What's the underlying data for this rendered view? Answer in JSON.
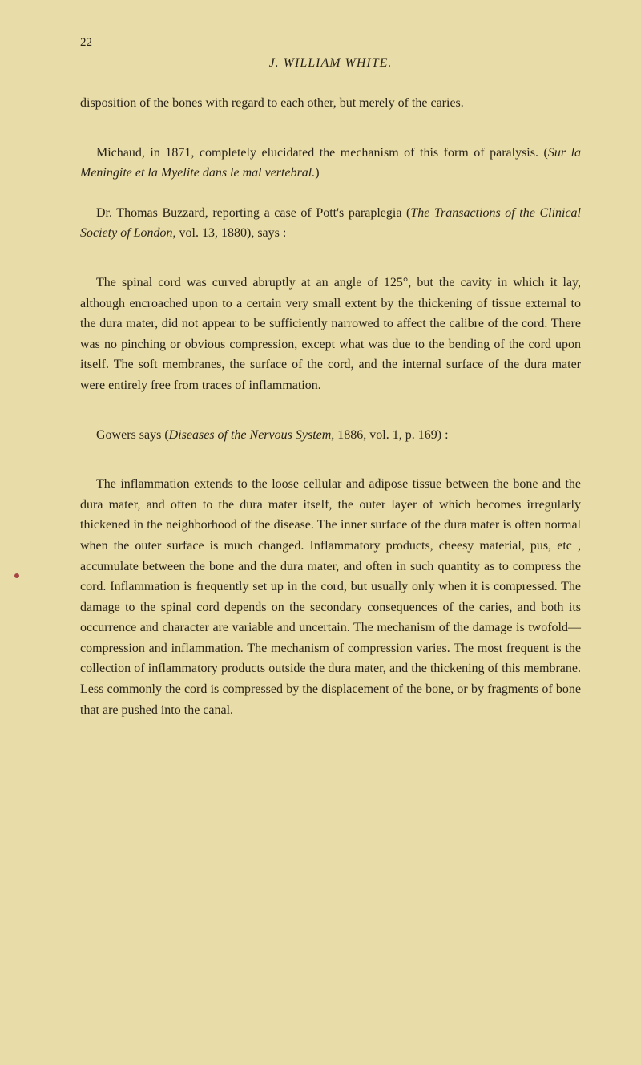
{
  "pageNumber": "22",
  "headerTitle": "J. WILLIAM WHITE.",
  "para1": "disposition of the bones with regard to each other, but merely of the caries.",
  "para2_part1": "Michaud, in 1871, completely elucidated the mechanism of this form of paralysis. (",
  "para2_italic": "Sur la Meningite et la Myelite dans le mal vertebral.",
  "para2_part2": ")",
  "para3_part1": "Dr. Thomas Buzzard, reporting a case of Pott's paraplegia (",
  "para3_italic": "The Transactions of the Clinical Society of London,",
  "para3_part2": " vol. 13, 1880), says :",
  "para4": "The spinal cord was curved abruptly at an angle of 125°, but the cavity in which it lay, although encroached upon to a certain very small extent by the thickening of tissue external to the dura mater, did not appear to be sufficiently narrowed to affect the calibre of the cord. There was no pinching or obvious compression, except what was due to the bending of the cord upon itself. The soft membranes, the surface of the cord, and the internal surface of the dura mater were entirely free from traces of inflammation.",
  "para5_part1": "Gowers says (",
  "para5_italic": "Diseases of the Nervous System,",
  "para5_part2": " 1886, vol. 1, p. 169) :",
  "para6": "The inflammation extends to the loose cellular and adipose tissue between the bone and the dura mater, and often to the dura mater itself, the outer layer of which becomes irregularly thickened in the neighborhood of the disease. The inner surface of the dura mater is often normal when the outer surface is much changed. Inflammatory products, cheesy material, pus, etc , accumulate between the bone and the dura mater, and often in such quantity as to compress the cord. Inflammation is frequently set up in the cord, but usually only when it is compressed. The damage to the spinal cord depends on the secondary consequences of the caries, and both its occurrence and character are variable and uncertain. The mechanism of the damage is twofold—compression and inflammation. The mechanism of compression varies. The most frequent is the collection of inflammatory products outside the dura mater, and the thickening of this membrane. Less commonly the cord is compressed by the displacement of the bone, or by fragments of bone that are pushed into the canal."
}
